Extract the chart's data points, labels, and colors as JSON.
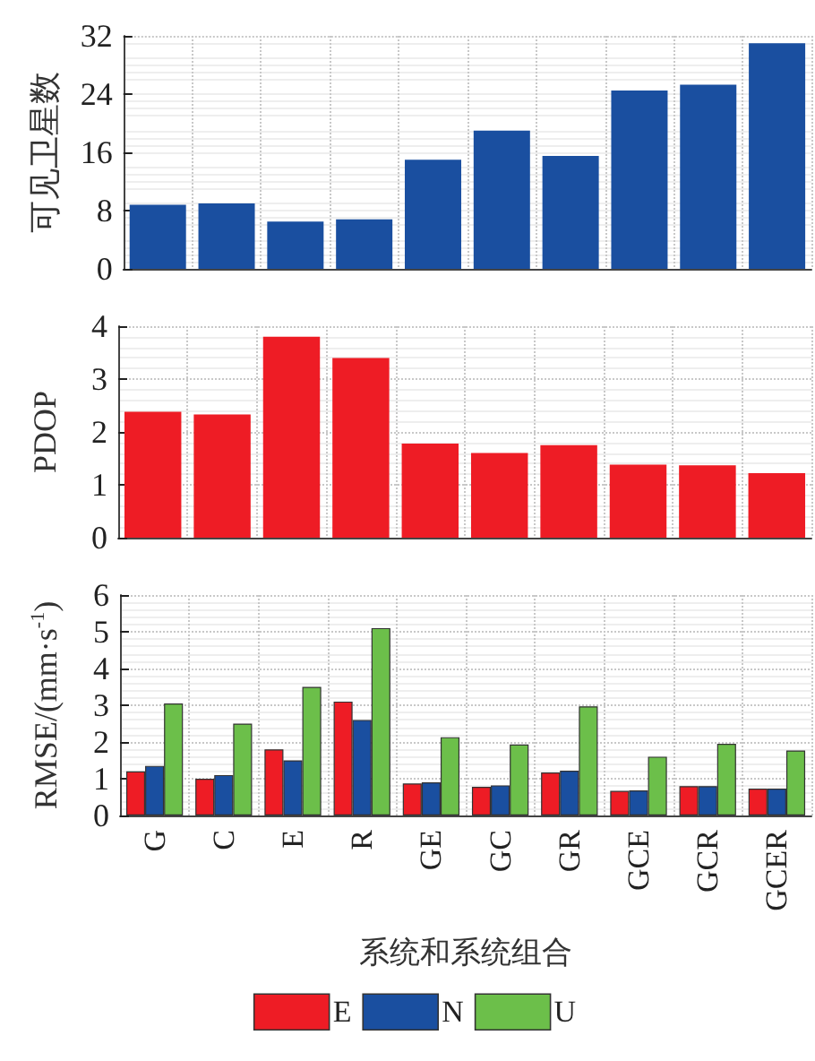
{
  "chart_data": [
    {
      "type": "bar",
      "ylabel": "可见卫星数",
      "categories": [
        null,
        null,
        null,
        null,
        null,
        null,
        null,
        null,
        null,
        null
      ],
      "tick_labels": "y",
      "grid": true,
      "legend": false,
      "ylim": [
        0,
        32
      ],
      "yticks": [
        0,
        8,
        16,
        24,
        32
      ],
      "series": [
        {
          "color": "#1a4fa0",
          "values": [
            8.8,
            9.0,
            6.5,
            6.8,
            15.0,
            19.0,
            15.5,
            24.5,
            25.3,
            31.0
          ]
        }
      ]
    },
    {
      "type": "bar",
      "ylabel": "PDOP",
      "categories": [
        null,
        null,
        null,
        null,
        null,
        null,
        null,
        null,
        null,
        null
      ],
      "tick_labels": "y",
      "grid": true,
      "legend": false,
      "ylim": [
        0,
        4
      ],
      "yticks": [
        0,
        1,
        2,
        3,
        4
      ],
      "series": [
        {
          "color": "#ee1c25",
          "values": [
            2.38,
            2.33,
            3.8,
            3.4,
            1.78,
            1.6,
            1.75,
            1.38,
            1.37,
            1.22
          ]
        }
      ]
    },
    {
      "type": "bar",
      "ylabel": "RMSE/(mm·s$^{-1}$)",
      "xlabel": "系统和系统组合",
      "categories": [
        "G",
        "C",
        "E",
        "R",
        "GE",
        "GC",
        "GR",
        "GCE",
        "GCR",
        "GCER"
      ],
      "grid": true,
      "legend": "bottom",
      "ylim": [
        0,
        6
      ],
      "yticks": [
        0,
        1,
        2,
        3,
        4,
        5,
        6
      ],
      "series": [
        {
          "name": "E",
          "color": "#ee1c25",
          "values": [
            1.2,
            1.0,
            1.8,
            3.1,
            0.87,
            0.78,
            1.17,
            0.67,
            0.8,
            0.73
          ]
        },
        {
          "name": "N",
          "color": "#1a4fa0",
          "values": [
            1.35,
            1.1,
            1.5,
            2.6,
            0.9,
            0.82,
            1.22,
            0.68,
            0.8,
            0.73
          ]
        },
        {
          "name": "U",
          "color": "#6cbf4a",
          "values": [
            3.05,
            2.5,
            3.5,
            5.1,
            2.13,
            1.93,
            2.97,
            1.6,
            1.95,
            1.77
          ]
        }
      ]
    }
  ]
}
